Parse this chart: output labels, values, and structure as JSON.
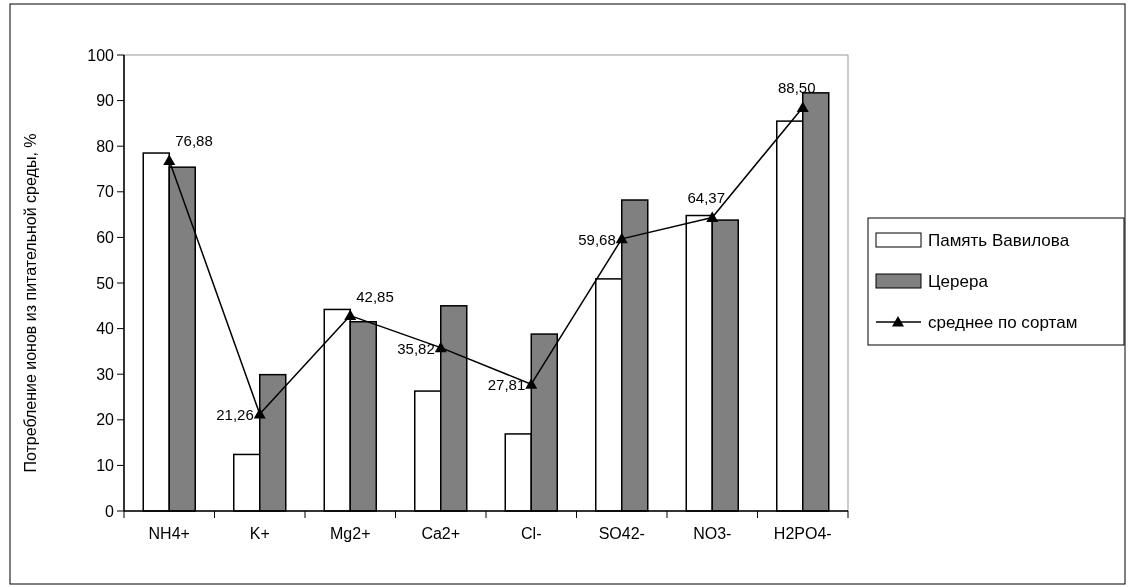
{
  "chart_data": {
    "type": "bar",
    "ylabel": "Потребление ионов из питательной среды, %",
    "categories": [
      "NH4+",
      "K+",
      "Mg2+",
      "Ca2+",
      "Cl-",
      "SO42-",
      "NO3-",
      "H2PO4-"
    ],
    "ylim": [
      0,
      100
    ],
    "yticks": [
      0,
      10,
      20,
      30,
      40,
      50,
      60,
      70,
      80,
      90,
      100
    ],
    "grid": false,
    "legend": "right",
    "series": [
      {
        "name": "Память Вавилова",
        "color": "#ffffff",
        "values": [
          78.5,
          12.4,
          44.2,
          26.3,
          16.9,
          50.9,
          64.8,
          85.5
        ]
      },
      {
        "name": "Церера",
        "color": "#808080",
        "values": [
          75.4,
          29.9,
          41.5,
          45.0,
          38.8,
          68.2,
          63.8,
          91.7
        ]
      },
      {
        "name": "среднее по сортам",
        "type": "line",
        "color": "#000000",
        "marker": "triangle",
        "line_style": "solid",
        "values": [
          76.88,
          21.26,
          42.85,
          35.82,
          27.81,
          59.68,
          64.37,
          88.5
        ],
        "value_labels": [
          "76,88",
          "21,26",
          "42,85",
          "35,82",
          "27,81",
          "59,68",
          "64,37",
          "88,50"
        ]
      }
    ]
  }
}
